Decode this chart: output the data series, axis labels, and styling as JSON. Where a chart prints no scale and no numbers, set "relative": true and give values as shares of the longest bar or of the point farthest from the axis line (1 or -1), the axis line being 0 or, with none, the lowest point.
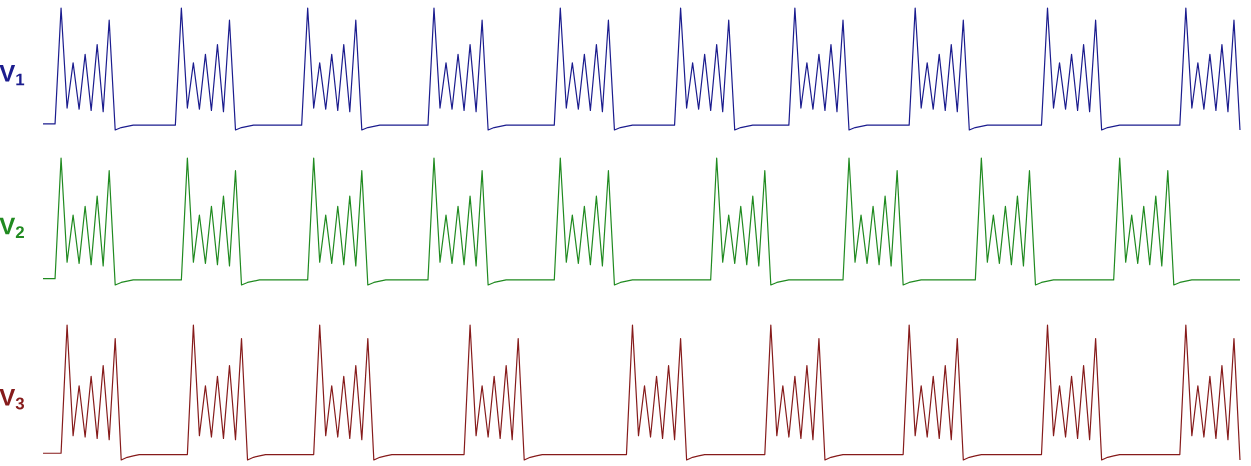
{
  "chart_data": [
    {
      "type": "line",
      "relative": true,
      "ylabel": "V$_{1}$",
      "categories": [
        null,
        null,
        null,
        null,
        null,
        null,
        null,
        null,
        null,
        null,
        null,
        null,
        null,
        null,
        null,
        null,
        null,
        null,
        null,
        null,
        null,
        null,
        null,
        null,
        null,
        null,
        null,
        null,
        null,
        null,
        null,
        null,
        null,
        null,
        null,
        null,
        null,
        null,
        null,
        null,
        null,
        null,
        null,
        null,
        null,
        null,
        null,
        null,
        null,
        null,
        null,
        null,
        null,
        null,
        null,
        null,
        null,
        null,
        null,
        null,
        null,
        null,
        null,
        null,
        null,
        null,
        null,
        null,
        null,
        null,
        null,
        null,
        null,
        null,
        null,
        null,
        null,
        null,
        null,
        null,
        null,
        null,
        null,
        null,
        null,
        null,
        null,
        null,
        null,
        null,
        null,
        null,
        null,
        null,
        null,
        null,
        null,
        null,
        null,
        null,
        null,
        null,
        null,
        null,
        null,
        null,
        null,
        null,
        null,
        null,
        null,
        null,
        null,
        null,
        null,
        null,
        null,
        null,
        null,
        null,
        null,
        null,
        null,
        null,
        null,
        null,
        null,
        null,
        null,
        null,
        null,
        null,
        null,
        null,
        null,
        null,
        null,
        null,
        null,
        null,
        null,
        null,
        null,
        null,
        null,
        null,
        null,
        null,
        null,
        null,
        null,
        null,
        null,
        null,
        null,
        null,
        null,
        null,
        null,
        null,
        null,
        null,
        null,
        null,
        null,
        null,
        null,
        null,
        null,
        null,
        null,
        null,
        null,
        null,
        null,
        null,
        null,
        null,
        null,
        null,
        null,
        null,
        null,
        null,
        null,
        null,
        null,
        null,
        null,
        null,
        null,
        null,
        null,
        null,
        null,
        null,
        null,
        null,
        null,
        null
      ],
      "series": [
        {
          "color": "#1b1c8e",
          "values": [
            0.05,
            0.05,
            0.05,
            1,
            0.18,
            0.55,
            0.17,
            0.62,
            0.16,
            0.7,
            0.15,
            0.9,
            0,
            0.02,
            0.03,
            0.04,
            0.04,
            0.04,
            0.04,
            0.04,
            0.04,
            0.04,
            0.04,
            1,
            0.18,
            0.55,
            0.17,
            0.62,
            0.16,
            0.7,
            0.15,
            0.9,
            0,
            0.02,
            0.03,
            0.04,
            0.04,
            0.04,
            0.04,
            0.04,
            0.04,
            0.04,
            0.04,
            0.04,
            1,
            0.18,
            0.55,
            0.17,
            0.62,
            0.16,
            0.7,
            0.15,
            0.9,
            0,
            0.02,
            0.03,
            0.04,
            0.04,
            0.04,
            0.04,
            0.04,
            0.04,
            0.04,
            0.04,
            0.04,
            1,
            0.18,
            0.55,
            0.17,
            0.62,
            0.16,
            0.7,
            0.15,
            0.9,
            0,
            0.02,
            0.03,
            0.04,
            0.04,
            0.04,
            0.04,
            0.04,
            0.04,
            0.04,
            0.04,
            0.04,
            1,
            0.18,
            0.55,
            0.17,
            0.62,
            0.16,
            0.7,
            0.15,
            0.9,
            0,
            0.02,
            0.03,
            0.04,
            0.04,
            0.04,
            0.04,
            0.04,
            0.04,
            0.04,
            0.04,
            1,
            0.18,
            0.55,
            0.17,
            0.62,
            0.16,
            0.7,
            0.15,
            0.9,
            0,
            0.02,
            0.03,
            0.04,
            0.04,
            0.04,
            0.04,
            0.04,
            0.04,
            0.04,
            1,
            0.18,
            0.55,
            0.17,
            0.62,
            0.16,
            0.7,
            0.15,
            0.9,
            0,
            0.02,
            0.03,
            0.04,
            0.04,
            0.04,
            0.04,
            0.04,
            0.04,
            0.04,
            0.04,
            1,
            0.18,
            0.55,
            0.17,
            0.62,
            0.16,
            0.7,
            0.15,
            0.9,
            0,
            0.02,
            0.03,
            0.04,
            0.04,
            0.04,
            0.04,
            0.04,
            0.04,
            0.04,
            0.04,
            0.04,
            0.04,
            1,
            0.18,
            0.55,
            0.17,
            0.62,
            0.16,
            0.7,
            0.15,
            0.9,
            0,
            0.02,
            0.03,
            0.04,
            0.04,
            0.04,
            0.04,
            0.04,
            0.04,
            0.04,
            0.04,
            0.04,
            0.04,
            0.04,
            1,
            0.18,
            0.55,
            0.17,
            0.62,
            0.16,
            0.7,
            0.15,
            0.9,
            0
          ]
        }
      ]
    },
    {
      "type": "line",
      "relative": true,
      "ylabel": "V$_{2}$",
      "categories": [
        null,
        null,
        null,
        null,
        null,
        null,
        null,
        null,
        null,
        null,
        null,
        null,
        null,
        null,
        null,
        null,
        null,
        null,
        null,
        null,
        null,
        null,
        null,
        null,
        null,
        null,
        null,
        null,
        null,
        null,
        null,
        null,
        null,
        null,
        null,
        null,
        null,
        null,
        null,
        null,
        null,
        null,
        null,
        null,
        null,
        null,
        null,
        null,
        null,
        null,
        null,
        null,
        null,
        null,
        null,
        null,
        null,
        null,
        null,
        null,
        null,
        null,
        null,
        null,
        null,
        null,
        null,
        null,
        null,
        null,
        null,
        null,
        null,
        null,
        null,
        null,
        null,
        null,
        null,
        null,
        null,
        null,
        null,
        null,
        null,
        null,
        null,
        null,
        null,
        null,
        null,
        null,
        null,
        null,
        null,
        null,
        null,
        null,
        null,
        null,
        null,
        null,
        null,
        null,
        null,
        null,
        null,
        null,
        null,
        null,
        null,
        null,
        null,
        null,
        null,
        null,
        null,
        null,
        null,
        null,
        null,
        null,
        null,
        null,
        null,
        null,
        null,
        null,
        null,
        null,
        null,
        null,
        null,
        null,
        null,
        null,
        null,
        null,
        null,
        null,
        null,
        null,
        null,
        null,
        null,
        null,
        null,
        null,
        null,
        null,
        null,
        null,
        null,
        null,
        null,
        null,
        null,
        null,
        null,
        null,
        null,
        null,
        null,
        null,
        null,
        null,
        null,
        null,
        null,
        null,
        null,
        null,
        null,
        null,
        null,
        null,
        null,
        null,
        null,
        null,
        null,
        null,
        null,
        null,
        null,
        null,
        null,
        null,
        null,
        null,
        null,
        null,
        null,
        null,
        null,
        null,
        null,
        null,
        null,
        null
      ],
      "series": [
        {
          "color": "#208a20",
          "values": [
            0.05,
            0.05,
            0.05,
            1,
            0.18,
            0.55,
            0.17,
            0.62,
            0.16,
            0.7,
            0.15,
            0.9,
            0,
            0.02,
            0.03,
            0.04,
            0.04,
            0.04,
            0.04,
            0.04,
            0.04,
            0.04,
            0.04,
            0.04,
            1,
            0.18,
            0.55,
            0.17,
            0.62,
            0.16,
            0.7,
            0.15,
            0.9,
            0,
            0.02,
            0.03,
            0.04,
            0.04,
            0.04,
            0.04,
            0.04,
            0.04,
            0.04,
            0.04,
            0.04,
            1,
            0.18,
            0.55,
            0.17,
            0.62,
            0.16,
            0.7,
            0.15,
            0.9,
            0,
            0.02,
            0.03,
            0.04,
            0.04,
            0.04,
            0.04,
            0.04,
            0.04,
            0.04,
            0.04,
            1,
            0.18,
            0.55,
            0.17,
            0.62,
            0.16,
            0.7,
            0.15,
            0.9,
            0,
            0.02,
            0.03,
            0.04,
            0.04,
            0.04,
            0.04,
            0.04,
            0.04,
            0.04,
            0.04,
            0.04,
            1,
            0.18,
            0.55,
            0.17,
            0.62,
            0.16,
            0.7,
            0.15,
            0.9,
            0,
            0.02,
            0.03,
            0.04,
            0.04,
            0.04,
            0.04,
            0.04,
            0.04,
            0.04,
            0.04,
            0.04,
            0.04,
            0.04,
            0.04,
            0.04,
            0.04,
            1,
            0.18,
            0.55,
            0.17,
            0.62,
            0.16,
            0.7,
            0.15,
            0.9,
            0,
            0.02,
            0.03,
            0.04,
            0.04,
            0.04,
            0.04,
            0.04,
            0.04,
            0.04,
            0.04,
            0.04,
            0.04,
            1,
            0.18,
            0.55,
            0.17,
            0.62,
            0.16,
            0.7,
            0.15,
            0.9,
            0,
            0.02,
            0.03,
            0.04,
            0.04,
            0.04,
            0.04,
            0.04,
            0.04,
            0.04,
            0.04,
            0.04,
            0.04,
            1,
            0.18,
            0.55,
            0.17,
            0.62,
            0.16,
            0.7,
            0.15,
            0.9,
            0,
            0.02,
            0.03,
            0.04,
            0.04,
            0.04,
            0.04,
            0.04,
            0.04,
            0.04,
            0.04,
            0.04,
            0.04,
            0.04,
            1,
            0.18,
            0.55,
            0.17,
            0.62,
            0.16,
            0.7,
            0.15,
            0.9,
            0,
            0.02,
            0.03,
            0.04,
            0.04,
            0.04,
            0.04,
            0.04,
            0.04,
            0.04,
            0.04,
            0.04
          ]
        }
      ]
    },
    {
      "type": "line",
      "relative": true,
      "ylabel": "V$_{3}$",
      "categories": [
        null,
        null,
        null,
        null,
        null,
        null,
        null,
        null,
        null,
        null,
        null,
        null,
        null,
        null,
        null,
        null,
        null,
        null,
        null,
        null,
        null,
        null,
        null,
        null,
        null,
        null,
        null,
        null,
        null,
        null,
        null,
        null,
        null,
        null,
        null,
        null,
        null,
        null,
        null,
        null,
        null,
        null,
        null,
        null,
        null,
        null,
        null,
        null,
        null,
        null,
        null,
        null,
        null,
        null,
        null,
        null,
        null,
        null,
        null,
        null,
        null,
        null,
        null,
        null,
        null,
        null,
        null,
        null,
        null,
        null,
        null,
        null,
        null,
        null,
        null,
        null,
        null,
        null,
        null,
        null,
        null,
        null,
        null,
        null,
        null,
        null,
        null,
        null,
        null,
        null,
        null,
        null,
        null,
        null,
        null,
        null,
        null,
        null,
        null,
        null,
        null,
        null,
        null,
        null,
        null,
        null,
        null,
        null,
        null,
        null,
        null,
        null,
        null,
        null,
        null,
        null,
        null,
        null,
        null,
        null,
        null,
        null,
        null,
        null,
        null,
        null,
        null,
        null,
        null,
        null,
        null,
        null,
        null,
        null,
        null,
        null,
        null,
        null,
        null,
        null,
        null,
        null,
        null,
        null,
        null,
        null,
        null,
        null,
        null,
        null,
        null,
        null,
        null,
        null,
        null,
        null,
        null,
        null,
        null,
        null,
        null,
        null,
        null,
        null,
        null,
        null,
        null,
        null,
        null,
        null,
        null,
        null,
        null,
        null,
        null,
        null,
        null,
        null,
        null,
        null,
        null,
        null,
        null,
        null,
        null,
        null,
        null,
        null,
        null,
        null,
        null,
        null,
        null,
        null,
        null,
        null,
        null,
        null,
        null,
        null
      ],
      "series": [
        {
          "color": "#861b1b",
          "values": [
            0.05,
            0.05,
            0.05,
            0.05,
            1,
            0.18,
            0.55,
            0.17,
            0.62,
            0.16,
            0.7,
            0.15,
            0.9,
            0,
            0.02,
            0.03,
            0.04,
            0.04,
            0.04,
            0.04,
            0.04,
            0.04,
            0.04,
            0.04,
            0.04,
            1,
            0.18,
            0.55,
            0.17,
            0.62,
            0.16,
            0.7,
            0.15,
            0.9,
            0,
            0.02,
            0.03,
            0.04,
            0.04,
            0.04,
            0.04,
            0.04,
            0.04,
            0.04,
            0.04,
            0.04,
            1,
            0.18,
            0.55,
            0.17,
            0.62,
            0.16,
            0.7,
            0.15,
            0.9,
            0,
            0.02,
            0.03,
            0.04,
            0.04,
            0.04,
            0.04,
            0.04,
            0.04,
            0.04,
            0.04,
            0.04,
            0.04,
            0.04,
            0.04,
            0.04,
            1,
            0.18,
            0.55,
            0.17,
            0.62,
            0.16,
            0.7,
            0.15,
            0.9,
            0,
            0.02,
            0.03,
            0.04,
            0.04,
            0.04,
            0.04,
            0.04,
            0.04,
            0.04,
            0.04,
            0.04,
            0.04,
            0.04,
            0.04,
            0.04,
            0.04,
            0.04,
            1,
            0.18,
            0.55,
            0.17,
            0.62,
            0.16,
            0.7,
            0.15,
            0.9,
            0,
            0.02,
            0.03,
            0.04,
            0.04,
            0.04,
            0.04,
            0.04,
            0.04,
            0.04,
            0.04,
            0.04,
            0.04,
            0.04,
            1,
            0.18,
            0.55,
            0.17,
            0.62,
            0.16,
            0.7,
            0.15,
            0.9,
            0,
            0.02,
            0.03,
            0.04,
            0.04,
            0.04,
            0.04,
            0.04,
            0.04,
            0.04,
            0.04,
            0.04,
            0.04,
            0.04,
            1,
            0.18,
            0.55,
            0.17,
            0.62,
            0.16,
            0.7,
            0.15,
            0.9,
            0,
            0.02,
            0.03,
            0.04,
            0.04,
            0.04,
            0.04,
            0.04,
            0.04,
            0.04,
            0.04,
            0.04,
            0.04,
            0.04,
            1,
            0.18,
            0.55,
            0.17,
            0.62,
            0.16,
            0.7,
            0.15,
            0.9,
            0,
            0.02,
            0.03,
            0.04,
            0.04,
            0.04,
            0.04,
            0.04,
            0.04,
            0.04,
            0.04,
            0.04,
            0.04,
            0.04,
            1,
            0.18,
            0.55,
            0.17,
            0.62,
            0.16,
            0.7,
            0.15,
            0.9,
            0
          ]
        }
      ]
    }
  ]
}
